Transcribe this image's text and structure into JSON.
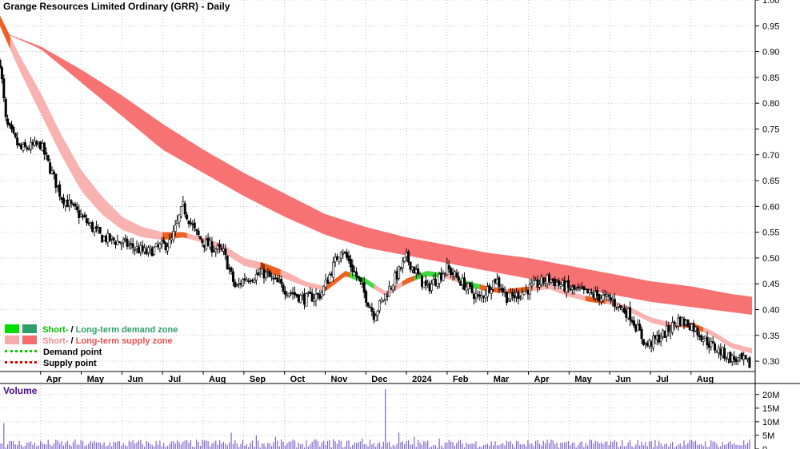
{
  "title": "Grange Resources Limited Ordinary (GRR) - Daily",
  "volume_panel": {
    "title": "Volume"
  },
  "legend": {
    "demand_zone": {
      "short": "Short-",
      "sep": " / ",
      "long": "Long-term demand zone",
      "short_color": "#00e000",
      "long_color": "#2e9e6a"
    },
    "supply_zone": {
      "short": "Short-",
      "sep": " / ",
      "long": "Long-term supply zone",
      "short_color": "#f7aaaa",
      "long_color": "#f46b6b"
    },
    "demand_point": {
      "label": "Demand point",
      "color": "#00cc00"
    },
    "supply_point": {
      "label": "Supply point",
      "color": "#e00000"
    }
  },
  "colors": {
    "long_term_zone": "#f77272",
    "short_term_supply": "#f8b2b0",
    "short_term_demand": "#3ddc3d",
    "crossover": "#f06020",
    "price": "#000000",
    "volume": "#7b64c8",
    "grid": "#9e9e9e"
  },
  "chart_data": {
    "type": "candlestick",
    "interval": "Daily",
    "y_scale": "price",
    "ylim": [
      0.28,
      1.0
    ],
    "y_ticks": [
      "1.00",
      "0.95",
      "0.90",
      "0.85",
      "0.80",
      "0.75",
      "0.70",
      "0.65",
      "0.60",
      "0.55",
      "0.50",
      "0.45",
      "0.40",
      "0.35",
      "0.30"
    ],
    "x_labels": [
      "Apr",
      "May",
      "Jun",
      "Jul",
      "Aug",
      "Sep",
      "Oct",
      "Nov",
      "Dec",
      "2024",
      "Feb",
      "Mar",
      "Apr",
      "May",
      "Jun",
      "Jul",
      "Aug"
    ],
    "close_checkpoints": [
      {
        "t": 0.0,
        "v": 0.88
      },
      {
        "t": 0.15,
        "v": 0.76
      },
      {
        "t": 0.5,
        "v": 0.71
      },
      {
        "t": 1.0,
        "v": 0.72
      },
      {
        "t": 1.5,
        "v": 0.62
      },
      {
        "t": 2.0,
        "v": 0.58
      },
      {
        "t": 2.5,
        "v": 0.54
      },
      {
        "t": 3.0,
        "v": 0.53
      },
      {
        "t": 3.6,
        "v": 0.51
      },
      {
        "t": 4.2,
        "v": 0.53
      },
      {
        "t": 4.5,
        "v": 0.6
      },
      {
        "t": 4.8,
        "v": 0.55
      },
      {
        "t": 5.0,
        "v": 0.53
      },
      {
        "t": 5.5,
        "v": 0.51
      },
      {
        "t": 5.8,
        "v": 0.44
      },
      {
        "t": 6.0,
        "v": 0.46
      },
      {
        "t": 6.5,
        "v": 0.47
      },
      {
        "t": 7.0,
        "v": 0.44
      },
      {
        "t": 7.5,
        "v": 0.42
      },
      {
        "t": 7.9,
        "v": 0.43
      },
      {
        "t": 8.4,
        "v": 0.52
      },
      {
        "t": 8.8,
        "v": 0.46
      },
      {
        "t": 9.2,
        "v": 0.39
      },
      {
        "t": 9.5,
        "v": 0.43
      },
      {
        "t": 10.0,
        "v": 0.5
      },
      {
        "t": 10.5,
        "v": 0.44
      },
      {
        "t": 11.0,
        "v": 0.48
      },
      {
        "t": 11.4,
        "v": 0.45
      },
      {
        "t": 11.8,
        "v": 0.42
      },
      {
        "t": 12.2,
        "v": 0.46
      },
      {
        "t": 12.5,
        "v": 0.42
      },
      {
        "t": 13.0,
        "v": 0.44
      },
      {
        "t": 13.5,
        "v": 0.46
      },
      {
        "t": 14.0,
        "v": 0.44
      },
      {
        "t": 14.5,
        "v": 0.43
      },
      {
        "t": 15.0,
        "v": 0.42
      },
      {
        "t": 15.5,
        "v": 0.39
      },
      {
        "t": 15.9,
        "v": 0.33
      },
      {
        "t": 16.3,
        "v": 0.35
      },
      {
        "t": 16.7,
        "v": 0.38
      },
      {
        "t": 17.0,
        "v": 0.37
      },
      {
        "t": 17.5,
        "v": 0.33
      },
      {
        "t": 18.0,
        "v": 0.305
      },
      {
        "t": 18.3,
        "v": 0.3
      },
      {
        "t": 18.5,
        "v": 0.29
      }
    ],
    "long_zone_upper": [
      {
        "t": 0.0,
        "v": 0.94
      },
      {
        "t": 1.0,
        "v": 0.91
      },
      {
        "t": 2.0,
        "v": 0.865
      },
      {
        "t": 3.0,
        "v": 0.815
      },
      {
        "t": 4.0,
        "v": 0.76
      },
      {
        "t": 5.0,
        "v": 0.71
      },
      {
        "t": 6.0,
        "v": 0.665
      },
      {
        "t": 7.0,
        "v": 0.625
      },
      {
        "t": 8.0,
        "v": 0.585
      },
      {
        "t": 9.0,
        "v": 0.56
      },
      {
        "t": 10.0,
        "v": 0.54
      },
      {
        "t": 11.0,
        "v": 0.525
      },
      {
        "t": 12.0,
        "v": 0.51
      },
      {
        "t": 13.0,
        "v": 0.5
      },
      {
        "t": 14.0,
        "v": 0.485
      },
      {
        "t": 15.0,
        "v": 0.47
      },
      {
        "t": 16.0,
        "v": 0.455
      },
      {
        "t": 17.0,
        "v": 0.445
      },
      {
        "t": 18.0,
        "v": 0.43
      },
      {
        "t": 18.5,
        "v": 0.425
      }
    ],
    "long_zone_lower": [
      {
        "t": 0.0,
        "v": 0.94
      },
      {
        "t": 1.0,
        "v": 0.905
      },
      {
        "t": 2.0,
        "v": 0.84
      },
      {
        "t": 3.0,
        "v": 0.775
      },
      {
        "t": 4.0,
        "v": 0.71
      },
      {
        "t": 5.0,
        "v": 0.665
      },
      {
        "t": 6.0,
        "v": 0.62
      },
      {
        "t": 7.0,
        "v": 0.58
      },
      {
        "t": 8.0,
        "v": 0.545
      },
      {
        "t": 9.0,
        "v": 0.52
      },
      {
        "t": 10.0,
        "v": 0.505
      },
      {
        "t": 11.0,
        "v": 0.49
      },
      {
        "t": 12.0,
        "v": 0.475
      },
      {
        "t": 13.0,
        "v": 0.46
      },
      {
        "t": 14.0,
        "v": 0.445
      },
      {
        "t": 15.0,
        "v": 0.43
      },
      {
        "t": 16.0,
        "v": 0.415
      },
      {
        "t": 17.0,
        "v": 0.405
      },
      {
        "t": 18.0,
        "v": 0.395
      },
      {
        "t": 18.5,
        "v": 0.39
      }
    ],
    "short_zone_upper": [
      {
        "t": 0.0,
        "v": 0.97
      },
      {
        "t": 0.5,
        "v": 0.89
      },
      {
        "t": 1.0,
        "v": 0.82
      },
      {
        "t": 1.5,
        "v": 0.74
      },
      {
        "t": 2.0,
        "v": 0.67
      },
      {
        "t": 2.5,
        "v": 0.62
      },
      {
        "t": 3.0,
        "v": 0.58
      },
      {
        "t": 3.5,
        "v": 0.56
      },
      {
        "t": 4.0,
        "v": 0.55
      },
      {
        "t": 4.5,
        "v": 0.55
      },
      {
        "t": 5.0,
        "v": 0.54
      },
      {
        "t": 5.5,
        "v": 0.525
      },
      {
        "t": 6.0,
        "v": 0.5
      },
      {
        "t": 6.5,
        "v": 0.49
      },
      {
        "t": 7.0,
        "v": 0.475
      },
      {
        "t": 7.5,
        "v": 0.455
      },
      {
        "t": 8.0,
        "v": 0.445
      },
      {
        "t": 8.5,
        "v": 0.475
      },
      {
        "t": 9.0,
        "v": 0.46
      },
      {
        "t": 9.5,
        "v": 0.435
      },
      {
        "t": 10.0,
        "v": 0.46
      },
      {
        "t": 10.5,
        "v": 0.475
      },
      {
        "t": 11.0,
        "v": 0.47
      },
      {
        "t": 11.5,
        "v": 0.455
      },
      {
        "t": 12.0,
        "v": 0.445
      },
      {
        "t": 12.5,
        "v": 0.44
      },
      {
        "t": 13.0,
        "v": 0.445
      },
      {
        "t": 13.5,
        "v": 0.45
      },
      {
        "t": 14.0,
        "v": 0.435
      },
      {
        "t": 14.5,
        "v": 0.425
      },
      {
        "t": 15.0,
        "v": 0.42
      },
      {
        "t": 15.5,
        "v": 0.405
      },
      {
        "t": 16.0,
        "v": 0.385
      },
      {
        "t": 16.5,
        "v": 0.375
      },
      {
        "t": 17.0,
        "v": 0.375
      },
      {
        "t": 17.5,
        "v": 0.36
      },
      {
        "t": 18.0,
        "v": 0.335
      },
      {
        "t": 18.5,
        "v": 0.325
      }
    ],
    "short_zone_lower": [
      {
        "t": 0.0,
        "v": 0.95
      },
      {
        "t": 0.5,
        "v": 0.86
      },
      {
        "t": 1.0,
        "v": 0.78
      },
      {
        "t": 1.5,
        "v": 0.7
      },
      {
        "t": 2.0,
        "v": 0.63
      },
      {
        "t": 2.5,
        "v": 0.585
      },
      {
        "t": 3.0,
        "v": 0.555
      },
      {
        "t": 3.5,
        "v": 0.54
      },
      {
        "t": 4.0,
        "v": 0.535
      },
      {
        "t": 4.5,
        "v": 0.54
      },
      {
        "t": 5.0,
        "v": 0.53
      },
      {
        "t": 5.5,
        "v": 0.51
      },
      {
        "t": 6.0,
        "v": 0.485
      },
      {
        "t": 6.5,
        "v": 0.475
      },
      {
        "t": 7.0,
        "v": 0.46
      },
      {
        "t": 7.5,
        "v": 0.445
      },
      {
        "t": 8.0,
        "v": 0.435
      },
      {
        "t": 8.5,
        "v": 0.465
      },
      {
        "t": 9.0,
        "v": 0.45
      },
      {
        "t": 9.5,
        "v": 0.425
      },
      {
        "t": 10.0,
        "v": 0.45
      },
      {
        "t": 10.5,
        "v": 0.465
      },
      {
        "t": 11.0,
        "v": 0.46
      },
      {
        "t": 11.5,
        "v": 0.445
      },
      {
        "t": 12.0,
        "v": 0.435
      },
      {
        "t": 12.5,
        "v": 0.43
      },
      {
        "t": 13.0,
        "v": 0.435
      },
      {
        "t": 13.5,
        "v": 0.44
      },
      {
        "t": 14.0,
        "v": 0.425
      },
      {
        "t": 14.5,
        "v": 0.415
      },
      {
        "t": 15.0,
        "v": 0.41
      },
      {
        "t": 15.5,
        "v": 0.395
      },
      {
        "t": 16.0,
        "v": 0.375
      },
      {
        "t": 16.5,
        "v": 0.365
      },
      {
        "t": 17.0,
        "v": 0.365
      },
      {
        "t": 17.5,
        "v": 0.35
      },
      {
        "t": 18.0,
        "v": 0.325
      },
      {
        "t": 18.5,
        "v": 0.315
      }
    ],
    "short_demand_spans": [
      [
        8.6,
        9.2
      ],
      [
        10.2,
        10.9
      ],
      [
        11.3,
        11.8
      ]
    ],
    "crossover_spans": [
      [
        0.0,
        0.25
      ],
      [
        4.0,
        4.6
      ],
      [
        6.4,
        6.9
      ],
      [
        8.0,
        8.6
      ],
      [
        9.9,
        10.2
      ],
      [
        11.8,
        12.3
      ],
      [
        12.5,
        13.1
      ],
      [
        14.4,
        14.9
      ],
      [
        16.8,
        17.3
      ]
    ],
    "volume": {
      "y_ticks": [
        "20M",
        "15M",
        "10M",
        "5M",
        "0"
      ],
      "ylim": [
        0,
        22
      ],
      "unit": "M",
      "typical_range": [
        0.5,
        3.5
      ],
      "spikes": [
        {
          "t": 0.1,
          "v": 9.5
        },
        {
          "t": 5.7,
          "v": 6.0
        },
        {
          "t": 6.3,
          "v": 5.0
        },
        {
          "t": 6.8,
          "v": 4.5
        },
        {
          "t": 8.2,
          "v": 3.6
        },
        {
          "t": 8.9,
          "v": 3.8
        },
        {
          "t": 9.5,
          "v": 22.0
        },
        {
          "t": 9.8,
          "v": 6.0
        },
        {
          "t": 10.2,
          "v": 4.5
        },
        {
          "t": 10.8,
          "v": 3.8
        }
      ]
    }
  }
}
